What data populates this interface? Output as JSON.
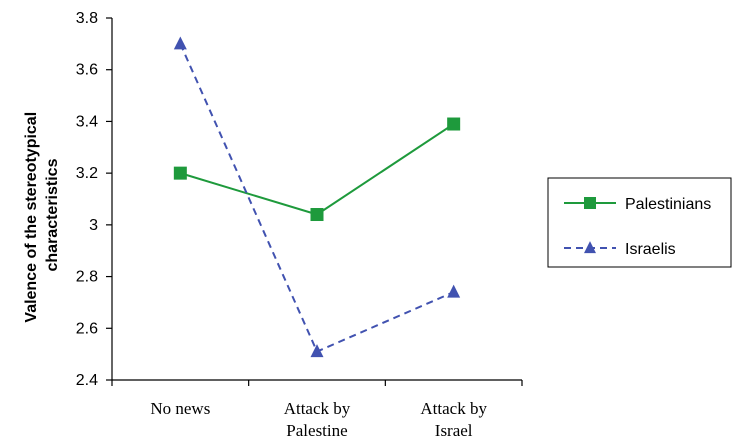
{
  "chart_data": {
    "type": "line",
    "categories": [
      "No news",
      "Attack by Palestine",
      "Attack by Israel"
    ],
    "category_lines": [
      [
        "No news"
      ],
      [
        "Attack by",
        "Palestine"
      ],
      [
        "Attack by",
        "Israel"
      ]
    ],
    "series": [
      {
        "name": "Palestinians",
        "values": [
          3.2,
          3.04,
          3.39
        ],
        "color": "#1e9a3c",
        "marker": "square",
        "line": "solid"
      },
      {
        "name": "Israelis",
        "values": [
          3.7,
          2.51,
          2.74
        ],
        "color": "#4152b0",
        "marker": "triangle",
        "line": "dashed"
      }
    ],
    "ylabel_lines": [
      "Valence of the stereotypical",
      "characteristics"
    ],
    "yticks": [
      "2.4",
      "2.6",
      "2.8",
      "3",
      "3.2",
      "3.4",
      "3.6",
      "3.8"
    ],
    "ylim": [
      2.4,
      3.8
    ],
    "grid": false,
    "legend_position": "right"
  }
}
